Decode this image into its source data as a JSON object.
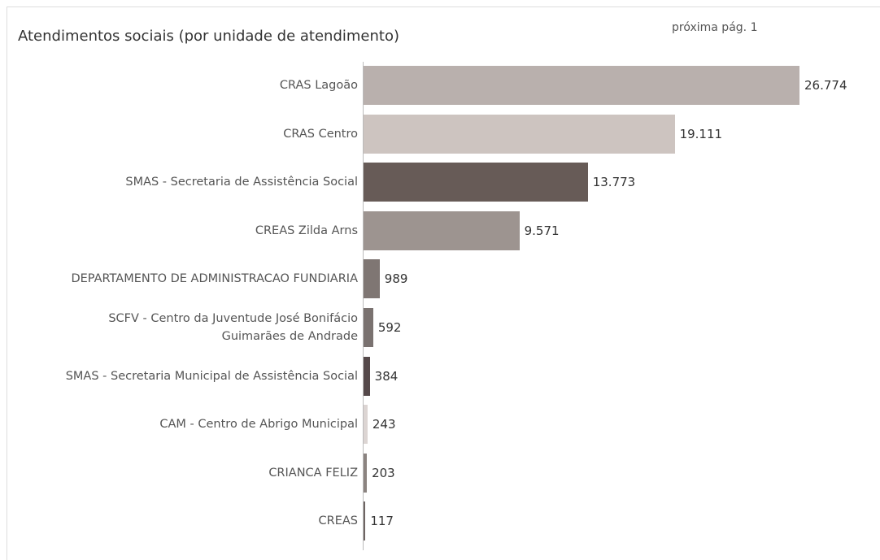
{
  "chart_data": {
    "type": "bar",
    "orientation": "horizontal",
    "title": "Atendimentos sociais (por unidade de atendimento)",
    "annotation": "próxima pág. 1",
    "categories": [
      "CRAS Lagoão",
      "CRAS Centro",
      "SMAS - Secretaria de Assistência Social",
      "CREAS Zilda Arns",
      "DEPARTAMENTO DE ADMINISTRACAO FUNDIARIA",
      "SCFV - Centro da Juventude José Bonifácio Guimarães de Andrade",
      "SMAS - Secretaria Municipal de Assistência Social",
      "CAM - Centro de Abrigo Municipal",
      "CRIANCA FELIZ",
      "CREAS"
    ],
    "values": [
      26774,
      19111,
      13773,
      9571,
      989,
      592,
      384,
      243,
      203,
      117
    ],
    "value_labels": [
      "26.774",
      "19.111",
      "13.773",
      "9.571",
      "989",
      "592",
      "384",
      "243",
      "203",
      "117"
    ],
    "colors": [
      "#b9b0ad",
      "#cdc4c0",
      "#675b57",
      "#9d9490",
      "#7f7673",
      "#7a7270",
      "#55494a",
      "#dcd5d3",
      "#8b8380",
      "#6e6563"
    ]
  }
}
